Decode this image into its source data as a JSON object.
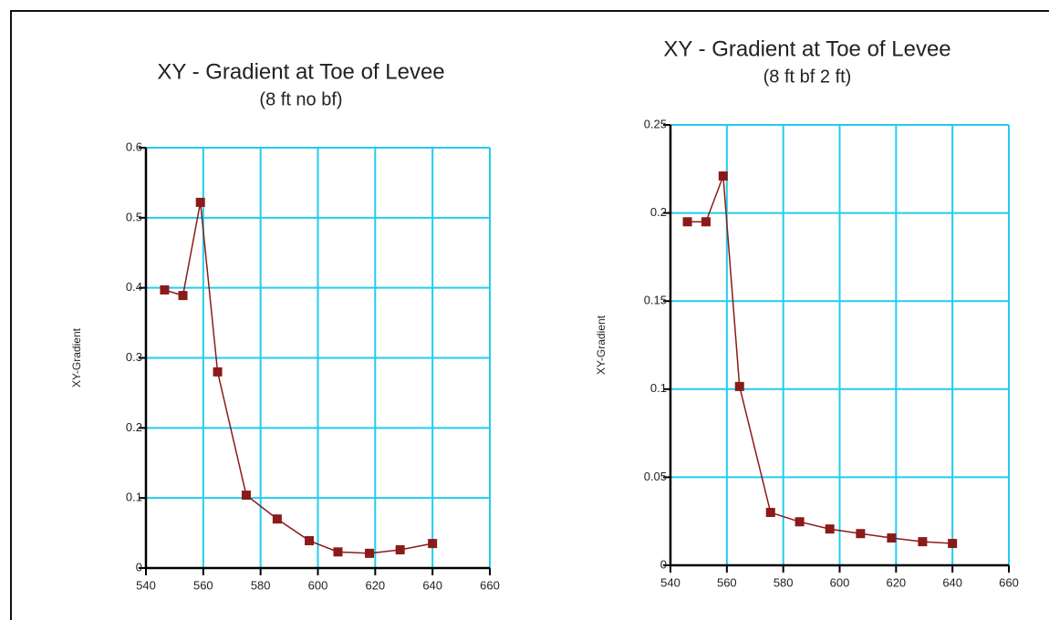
{
  "chart_data": [
    {
      "type": "line",
      "title": "XY - Gradient at Toe of Levee",
      "subtitle": "(8 ft no bf)",
      "y_label": "XY-Gradient",
      "xlim": [
        540,
        660
      ],
      "xticks": [
        540,
        560,
        580,
        600,
        620,
        640,
        660
      ],
      "ylim": [
        0,
        0.6
      ],
      "yticks": [
        0,
        0.1,
        0.2,
        0.3,
        0.4,
        0.5,
        0.6
      ],
      "grid": true,
      "grid_color": "#22ccf0",
      "series": [
        {
          "color": "#8b1a1a",
          "x": [
            546.5,
            552.9,
            559,
            565,
            575,
            585.8,
            597,
            607,
            618,
            628.7,
            640
          ],
          "values": [
            0.397,
            0.389,
            0.522,
            0.28,
            0.104,
            0.07,
            0.039,
            0.023,
            0.021,
            0.026,
            0.035
          ]
        }
      ]
    },
    {
      "type": "line",
      "title": "XY - Gradient at Toe of Levee",
      "subtitle": "(8 ft bf 2 ft)",
      "y_label": "XY-Gradient",
      "xlim": [
        540,
        660
      ],
      "xticks": [
        540,
        560,
        580,
        600,
        620,
        640,
        660
      ],
      "ylim": [
        0,
        0.25
      ],
      "yticks": [
        0,
        0.05,
        0.1,
        0.15,
        0.2,
        0.25
      ],
      "grid": true,
      "grid_color": "#22ccf0",
      "series": [
        {
          "color": "#8b1a1a",
          "x": [
            546,
            552.6,
            558.7,
            564.5,
            575.5,
            585.8,
            596.5,
            607.4,
            618.4,
            629.4,
            640
          ],
          "values": [
            0.195,
            0.195,
            0.221,
            0.1015,
            0.03,
            0.0247,
            0.0206,
            0.018,
            0.0155,
            0.0134,
            0.0124
          ]
        }
      ]
    }
  ]
}
